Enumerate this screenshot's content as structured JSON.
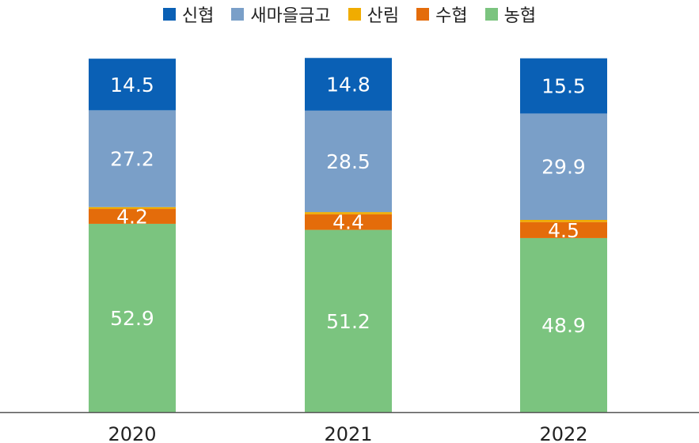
{
  "chart_data": {
    "type": "bar",
    "stacked": true,
    "categories": [
      "2020",
      "2021",
      "2022"
    ],
    "series": [
      {
        "name": "농협",
        "color": "#7bc47f",
        "values": [
          52.9,
          51.2,
          48.9
        ],
        "labels": [
          "52.9",
          "51.2",
          "48.9"
        ]
      },
      {
        "name": "수협",
        "color": "#e46c0a",
        "values": [
          4.2,
          4.4,
          4.5
        ],
        "labels": [
          "4.2",
          "4.4",
          "4.5"
        ]
      },
      {
        "name": "산림",
        "color": "#f0ac00",
        "values": [
          0.5,
          0.6,
          0.6
        ],
        "labels": [
          "",
          "",
          ""
        ]
      },
      {
        "name": "새마을금고",
        "color": "#7a9fc8",
        "values": [
          27.2,
          28.5,
          29.9
        ],
        "labels": [
          "27.2",
          "28.5",
          "29.9"
        ]
      },
      {
        "name": "신협",
        "color": "#0a60b5",
        "values": [
          14.5,
          14.8,
          15.5
        ],
        "labels": [
          "14.5",
          "14.8",
          "15.5"
        ]
      }
    ],
    "legend": {
      "position": "top-center",
      "order": [
        "신협",
        "새마을금고",
        "산림",
        "수협",
        "농협"
      ]
    },
    "grid": false
  }
}
